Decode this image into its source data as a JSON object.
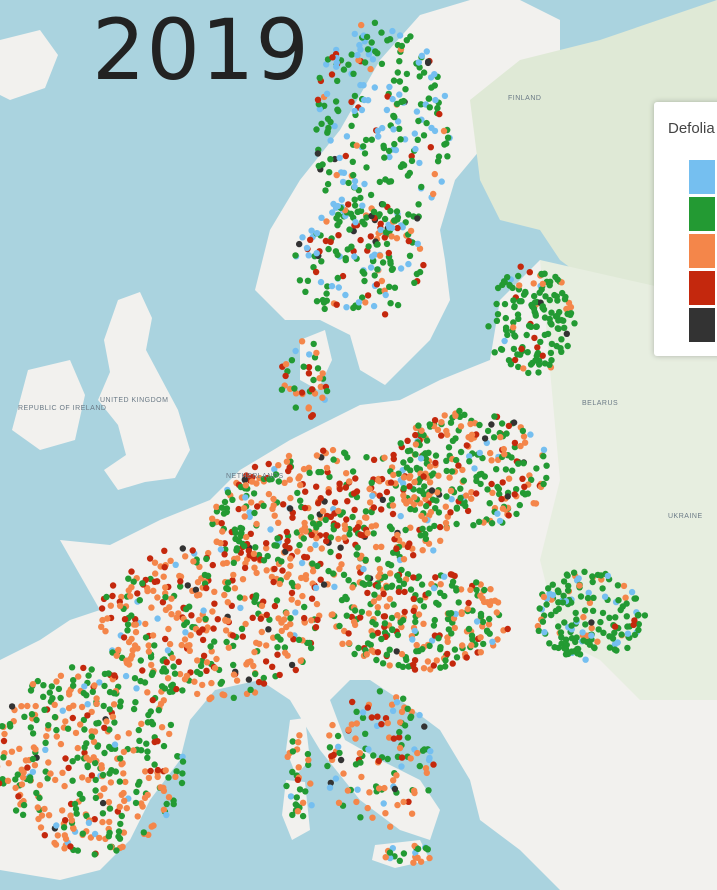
{
  "year": "2019",
  "legend": {
    "title": "Defolia",
    "classes": [
      {
        "color": "#75bff0"
      },
      {
        "color": "#239a33"
      },
      {
        "color": "#f4864a"
      },
      {
        "color": "#c4280d"
      },
      {
        "color": "#333333"
      }
    ]
  },
  "map_labels": {
    "uk": "UNITED KINGDOM",
    "ireland": "REPUBLIC OF IRELAND",
    "belarus": "BELARUS",
    "ukraine": "UKRAINE",
    "finland": "FINLAND",
    "netherlands": "NETHERLANDS"
  },
  "colors": {
    "water": "#aad3df",
    "land": "#f2f1ee",
    "land_east": "#e7eee0",
    "land_nordic": "#dfe9d6"
  }
}
